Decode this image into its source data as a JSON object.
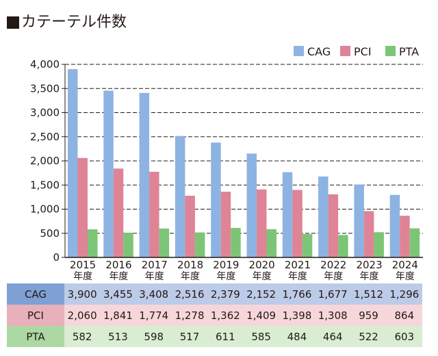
{
  "title": "カテーテル件数",
  "chart_data": {
    "type": "bar",
    "title": "カテーテル件数",
    "categories": [
      "2015年度",
      "2016年度",
      "2017年度",
      "2018年度",
      "2019年度",
      "2020年度",
      "2021年度",
      "2022年度",
      "2023年度",
      "2024年度"
    ],
    "category_years": [
      "2015",
      "2016",
      "2017",
      "2018",
      "2019",
      "2020",
      "2021",
      "2022",
      "2023",
      "2024"
    ],
    "category_suffix": "年度",
    "series": [
      {
        "name": "CAG",
        "color": "#8db3e2",
        "values": [
          3900,
          3455,
          3408,
          2516,
          2379,
          2152,
          1766,
          1677,
          1512,
          1296
        ],
        "labels": [
          "3,900",
          "3,455",
          "3,408",
          "2,516",
          "2,379",
          "2,152",
          "1,766",
          "1,677",
          "1,512",
          "1,296"
        ],
        "header_color": "#7fa0d5",
        "row_color": "#bccbe8"
      },
      {
        "name": "PCI",
        "color": "#de8496",
        "values": [
          2060,
          1841,
          1774,
          1278,
          1362,
          1409,
          1398,
          1308,
          959,
          864
        ],
        "labels": [
          "2,060",
          "1,841",
          "1,774",
          "1,278",
          "1,362",
          "1,409",
          "1,398",
          "1,308",
          "959",
          "864"
        ],
        "header_color": "#e8b0ba",
        "row_color": "#f6d6db"
      },
      {
        "name": "PTA",
        "color": "#7cc576",
        "values": [
          582,
          513,
          598,
          517,
          611,
          585,
          484,
          464,
          522,
          603
        ],
        "labels": [
          "582",
          "513",
          "598",
          "517",
          "611",
          "585",
          "484",
          "464",
          "522",
          "603"
        ],
        "header_color": "#acd8a3",
        "row_color": "#d9edd3"
      }
    ],
    "yticks": [
      "0",
      "500",
      "1,000",
      "1,500",
      "2,000",
      "2,500",
      "3,000",
      "3,500",
      "4,000"
    ],
    "ylim": [
      0,
      4000
    ],
    "grid": "dashed horizontal",
    "legend": "top-right"
  }
}
